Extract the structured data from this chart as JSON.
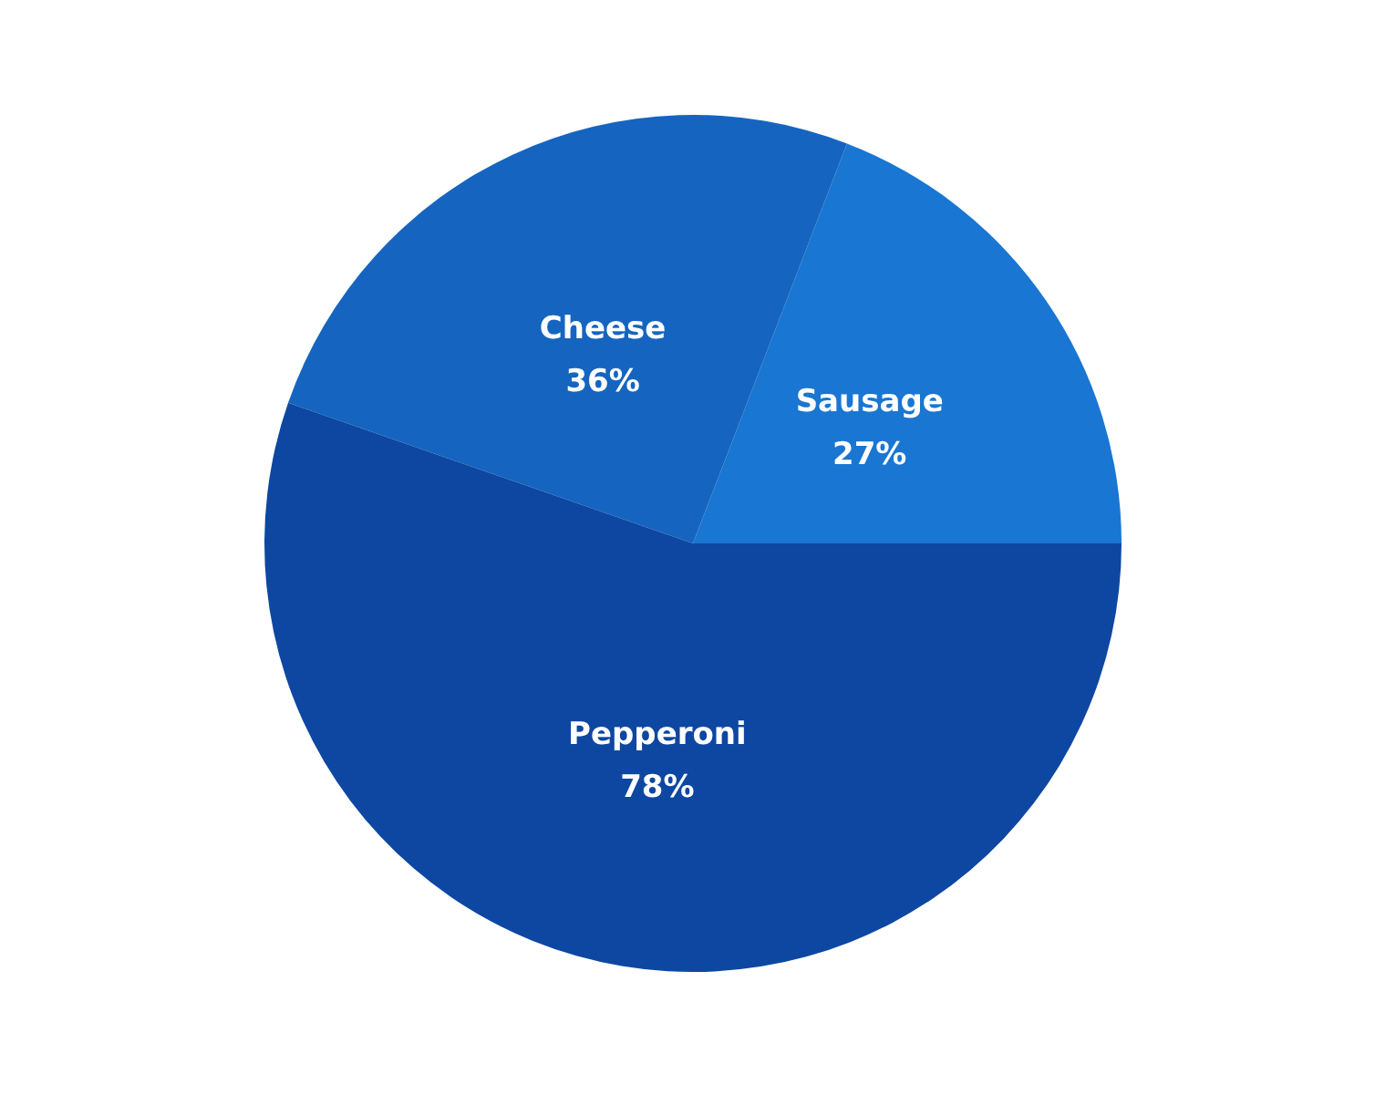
{
  "chart_data": {
    "type": "pie",
    "categories": [
      "Sausage",
      "Cheese",
      "Pepperoni"
    ],
    "values": [
      27,
      36,
      78
    ],
    "colors": [
      "#1976d2",
      "#1565c0",
      "#0d47a1"
    ],
    "value_labels": [
      "27%",
      "36%",
      "78%"
    ],
    "legend": false
  }
}
